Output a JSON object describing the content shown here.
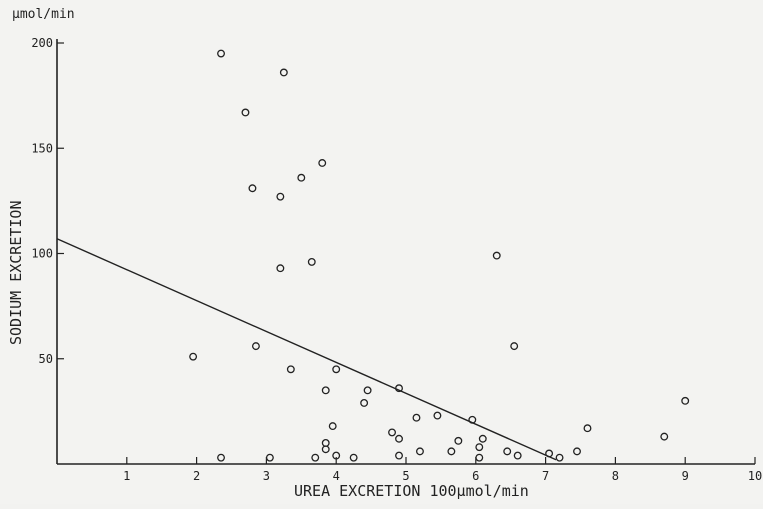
{
  "chart_data": {
    "type": "scatter",
    "title": "",
    "xlabel": "UREA EXCRETION 100μmol/min",
    "ylabel": "SODIUM EXCRETION",
    "y_unit": "μmol/min",
    "xlim": [
      0,
      10
    ],
    "ylim": [
      0,
      200
    ],
    "x_ticks": [
      1,
      2,
      3,
      4,
      5,
      6,
      7,
      8,
      9,
      10
    ],
    "y_ticks": [
      50,
      100,
      150,
      200
    ],
    "x_tick_labels": [
      "1",
      "2",
      "3",
      "4",
      "5",
      "6",
      "7",
      "8",
      "9",
      "10"
    ],
    "y_tick_labels": [
      "50",
      "100",
      "150",
      "200"
    ],
    "grid": false,
    "series": [
      {
        "marker": "open-circle",
        "points": [
          [
            2.35,
            195
          ],
          [
            3.25,
            186
          ],
          [
            2.7,
            167
          ],
          [
            3.8,
            143
          ],
          [
            3.5,
            136
          ],
          [
            2.8,
            131
          ],
          [
            3.2,
            127
          ],
          [
            3.65,
            96
          ],
          [
            3.2,
            93
          ],
          [
            6.3,
            99
          ],
          [
            6.55,
            56
          ],
          [
            2.85,
            56
          ],
          [
            1.95,
            51
          ],
          [
            3.35,
            45
          ],
          [
            4.0,
            45
          ],
          [
            3.85,
            35
          ],
          [
            4.45,
            35
          ],
          [
            4.9,
            36
          ],
          [
            4.4,
            29
          ],
          [
            5.45,
            23
          ],
          [
            5.15,
            22
          ],
          [
            5.95,
            21
          ],
          [
            9.0,
            30
          ],
          [
            3.95,
            18
          ],
          [
            4.8,
            15
          ],
          [
            6.1,
            12
          ],
          [
            6.05,
            8
          ],
          [
            7.6,
            17
          ],
          [
            8.7,
            13
          ],
          [
            4.9,
            12
          ],
          [
            5.75,
            11
          ],
          [
            3.85,
            10
          ],
          [
            3.85,
            7
          ],
          [
            5.2,
            6
          ],
          [
            5.65,
            6
          ],
          [
            6.45,
            6
          ],
          [
            7.05,
            5
          ],
          [
            7.45,
            6
          ],
          [
            2.35,
            3
          ],
          [
            3.05,
            3
          ],
          [
            3.7,
            3
          ],
          [
            4.0,
            4
          ],
          [
            4.25,
            3
          ],
          [
            4.9,
            4
          ],
          [
            6.05,
            3
          ],
          [
            6.6,
            4
          ],
          [
            7.2,
            3
          ]
        ]
      }
    ],
    "regression_line": {
      "x": [
        0,
        7.15
      ],
      "y": [
        107,
        2
      ]
    },
    "colors": {
      "background": "#f3f3f1",
      "ink": "#222222"
    }
  }
}
